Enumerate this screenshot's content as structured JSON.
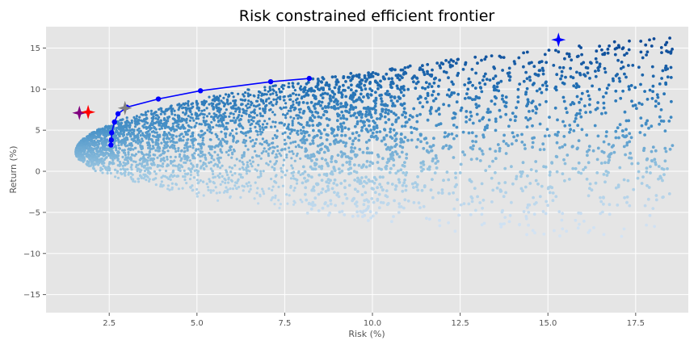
{
  "chart_data": {
    "type": "scatter",
    "title": "Risk constrained efficient frontier",
    "xlabel": "Risk (%)",
    "ylabel": "Return (%)",
    "xlim": [
      0.7,
      19.0
    ],
    "ylim": [
      -17.2,
      17.6
    ],
    "xticks": [
      2.5,
      5.0,
      7.5,
      10.0,
      12.5,
      15.0,
      17.5
    ],
    "xtick_labels": [
      "2.5",
      "5.0",
      "7.5",
      "10.0",
      "12.5",
      "15.0",
      "17.5"
    ],
    "yticks": [
      -15,
      -10,
      -5,
      0,
      5,
      10,
      15
    ],
    "ytick_labels": [
      "−15",
      "−10",
      "−5",
      "0",
      "5",
      "10",
      "15"
    ],
    "grid": true,
    "background": "#e5e5e5",
    "colormap": "Blues",
    "series": [
      {
        "type": "scatter-cloud",
        "color_by": "return"
      },
      {
        "type": "line",
        "color": "#0000ff",
        "points": [
          [
            2.55,
            3.2
          ],
          [
            2.56,
            3.8
          ],
          [
            2.57,
            4.7
          ],
          [
            2.65,
            6.0
          ],
          [
            2.75,
            7.0
          ],
          [
            3.0,
            7.8
          ],
          [
            3.9,
            8.8
          ],
          [
            5.1,
            9.8
          ],
          [
            7.1,
            10.9
          ],
          [
            8.2,
            11.3
          ]
        ]
      },
      {
        "type": "markers",
        "marker": "star4",
        "points": [
          {
            "x": 1.65,
            "y": 7.1,
            "color": "#800080"
          },
          {
            "x": 1.9,
            "y": 7.2,
            "color": "#ff0000"
          },
          {
            "x": 2.95,
            "y": 7.7,
            "color": "#808080"
          },
          {
            "x": 15.3,
            "y": 16.0,
            "color": "#0000ff"
          }
        ]
      }
    ]
  }
}
